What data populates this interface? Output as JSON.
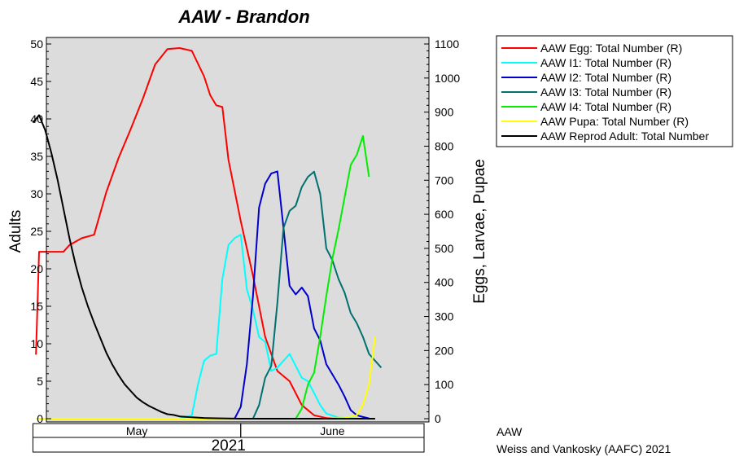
{
  "chart_data": {
    "type": "line",
    "title": "AAW - Brandon",
    "ylabel": "Adults",
    "y2label": "Eggs, Larvae, Pupae",
    "ylim": [
      0,
      50
    ],
    "y2lim": [
      0,
      1100
    ],
    "yticks": [
      0,
      5,
      10,
      15,
      20,
      25,
      30,
      35,
      40,
      45,
      50
    ],
    "y2ticks": [
      0,
      100,
      200,
      300,
      400,
      500,
      600,
      700,
      800,
      900,
      1000,
      1100
    ],
    "xlim": [
      0,
      61
    ],
    "x_unit": "days since 2021-05-01",
    "month_labels": [
      "May",
      "June"
    ],
    "month_spans": [
      [
        -3,
        31
      ],
      [
        31,
        61
      ]
    ],
    "year_label": "2021",
    "grid": false,
    "legend_position": "right",
    "background": "#dcdcdc",
    "credit_line1": "AAW",
    "credit_line2": "Weiss and Vankosky (AAFC) 2021",
    "series": [
      {
        "name": "AAW Egg: Total Number (R)",
        "axis": "right",
        "color": "#ff0000",
        "points": [
          [
            -2.5,
            188
          ],
          [
            -2,
            490
          ],
          [
            2,
            490
          ],
          [
            3,
            510
          ],
          [
            5,
            530
          ],
          [
            7,
            540
          ],
          [
            9,
            665
          ],
          [
            11,
            765
          ],
          [
            13,
            850
          ],
          [
            15,
            940
          ],
          [
            17,
            1040
          ],
          [
            19,
            1085
          ],
          [
            21,
            1088
          ],
          [
            23,
            1080
          ],
          [
            25,
            1005
          ],
          [
            26,
            950
          ],
          [
            27,
            920
          ],
          [
            28,
            915
          ],
          [
            29,
            760
          ],
          [
            31,
            580
          ],
          [
            33,
            420
          ],
          [
            35,
            240
          ],
          [
            37,
            140
          ],
          [
            39,
            110
          ],
          [
            41,
            40
          ],
          [
            43,
            10
          ],
          [
            45,
            2
          ],
          [
            47,
            0
          ]
        ]
      },
      {
        "name": "AAW I1: Total Number (R)",
        "axis": "right",
        "color": "#00ffff",
        "points": [
          [
            21,
            0
          ],
          [
            23,
            10
          ],
          [
            24,
            100
          ],
          [
            25,
            170
          ],
          [
            26,
            185
          ],
          [
            27,
            190
          ],
          [
            28,
            410
          ],
          [
            29,
            510
          ],
          [
            30,
            530
          ],
          [
            31,
            540
          ],
          [
            32,
            380
          ],
          [
            33,
            320
          ],
          [
            34,
            240
          ],
          [
            35,
            225
          ],
          [
            36,
            140
          ],
          [
            37,
            150
          ],
          [
            38,
            170
          ],
          [
            39,
            190
          ],
          [
            40,
            155
          ],
          [
            41,
            120
          ],
          [
            42,
            110
          ],
          [
            43,
            75
          ],
          [
            44,
            40
          ],
          [
            45,
            15
          ],
          [
            47,
            3
          ],
          [
            50,
            0
          ]
        ]
      },
      {
        "name": "AAW I2: Total Number (R)",
        "axis": "right",
        "color": "#0000cc",
        "points": [
          [
            30,
            0
          ],
          [
            31,
            35
          ],
          [
            32,
            160
          ],
          [
            33,
            360
          ],
          [
            34,
            620
          ],
          [
            35,
            690
          ],
          [
            36,
            720
          ],
          [
            37,
            726
          ],
          [
            38,
            560
          ],
          [
            39,
            390
          ],
          [
            40,
            365
          ],
          [
            41,
            385
          ],
          [
            42,
            360
          ],
          [
            43,
            265
          ],
          [
            44,
            230
          ],
          [
            45,
            160
          ],
          [
            46,
            130
          ],
          [
            47,
            100
          ],
          [
            48,
            65
          ],
          [
            49,
            25
          ],
          [
            50,
            10
          ],
          [
            51,
            5
          ],
          [
            52,
            1
          ]
        ]
      },
      {
        "name": "AAW I3: Total Number (R)",
        "axis": "right",
        "color": "#007070",
        "points": [
          [
            33,
            0
          ],
          [
            34,
            40
          ],
          [
            35,
            120
          ],
          [
            36,
            155
          ],
          [
            37,
            340
          ],
          [
            38,
            560
          ],
          [
            39,
            610
          ],
          [
            40,
            625
          ],
          [
            41,
            680
          ],
          [
            42,
            710
          ],
          [
            43,
            725
          ],
          [
            44,
            660
          ],
          [
            45,
            500
          ],
          [
            46,
            465
          ],
          [
            47,
            410
          ],
          [
            48,
            370
          ],
          [
            49,
            310
          ],
          [
            50,
            280
          ],
          [
            51,
            240
          ],
          [
            52,
            190
          ],
          [
            53,
            170
          ],
          [
            54,
            150
          ]
        ]
      },
      {
        "name": "AAW I4: Total Number (R)",
        "axis": "right",
        "color": "#00ee00",
        "points": [
          [
            40,
            0
          ],
          [
            41,
            30
          ],
          [
            42,
            100
          ],
          [
            43,
            135
          ],
          [
            44,
            240
          ],
          [
            45,
            360
          ],
          [
            46,
            470
          ],
          [
            47,
            555
          ],
          [
            48,
            650
          ],
          [
            49,
            745
          ],
          [
            50,
            775
          ],
          [
            51,
            830
          ],
          [
            52,
            710
          ]
        ]
      },
      {
        "name": "AAW Pupa: Total Number (R)",
        "axis": "right",
        "color": "#ffff00",
        "points": [
          [
            -2.5,
            0
          ],
          [
            45,
            0
          ],
          [
            48,
            2
          ],
          [
            50,
            10
          ],
          [
            51,
            40
          ],
          [
            52,
            100
          ],
          [
            53,
            240
          ]
        ]
      },
      {
        "name": "AAW Reprod Adult: Total Number",
        "axis": "left",
        "color": "#000000",
        "points": [
          [
            -3,
            39.5
          ],
          [
            -2,
            40.5
          ],
          [
            -1,
            38.5
          ],
          [
            0,
            35.5
          ],
          [
            1,
            32
          ],
          [
            2,
            28
          ],
          [
            3,
            24
          ],
          [
            4,
            20.5
          ],
          [
            5,
            17.5
          ],
          [
            6,
            15
          ],
          [
            7,
            12.8
          ],
          [
            8,
            10.8
          ],
          [
            9,
            8.8
          ],
          [
            10,
            7.2
          ],
          [
            11,
            5.8
          ],
          [
            12,
            4.6
          ],
          [
            13,
            3.7
          ],
          [
            14,
            2.8
          ],
          [
            15,
            2.2
          ],
          [
            16,
            1.7
          ],
          [
            17,
            1.3
          ],
          [
            18,
            0.9
          ],
          [
            19,
            0.6
          ],
          [
            20,
            0.5
          ],
          [
            21,
            0.3
          ],
          [
            23,
            0.2
          ],
          [
            25,
            0.1
          ],
          [
            27,
            0.05
          ],
          [
            31,
            0
          ],
          [
            53,
            0
          ]
        ]
      }
    ]
  }
}
